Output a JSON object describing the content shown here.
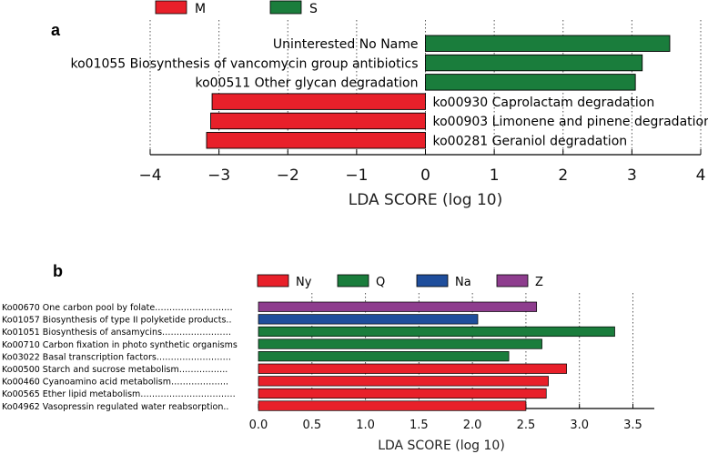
{
  "chart_data": [
    {
      "panel": "a",
      "type": "bar",
      "orientation": "horizontal",
      "xlabel": "LDA SCORE (log 10)",
      "xlim": [
        -4,
        4
      ],
      "xticks": [
        "−4",
        "−3",
        "−2",
        "−1",
        "0",
        "1",
        "2",
        "3",
        "4"
      ],
      "grid": "vertical dotted",
      "legend": [
        {
          "name": "M",
          "color": "#e8202a"
        },
        {
          "name": "S",
          "color": "#1a7d3c"
        }
      ],
      "bars": [
        {
          "label": "Uninterested No Name",
          "value": 3.55,
          "group": "S"
        },
        {
          "label": "ko01055 Biosynthesis of vancomycin group antibiotics",
          "value": 3.15,
          "group": "S"
        },
        {
          "label": "ko00511 Other glycan degradation",
          "value": 3.05,
          "group": "S"
        },
        {
          "label": "ko00930 Caprolactam degradation",
          "value": -3.1,
          "group": "M"
        },
        {
          "label": "ko00903 Limonene and pinene degradation",
          "value": -3.12,
          "group": "M"
        },
        {
          "label": "ko00281 Geraniol degradation",
          "value": -3.18,
          "group": "M"
        }
      ]
    },
    {
      "panel": "b",
      "type": "bar",
      "orientation": "horizontal",
      "xlabel": "LDA SCORE (log 10)",
      "xlim": [
        0,
        3.7
      ],
      "xticks": [
        "0.0",
        "0.5",
        "1.0",
        "1.5",
        "2.0",
        "2.5",
        "3.0",
        "3.5"
      ],
      "grid": "vertical dotted",
      "legend": [
        {
          "name": "Ny",
          "color": "#e8202a"
        },
        {
          "name": "Q",
          "color": "#1a7d3c"
        },
        {
          "name": "Na",
          "color": "#1f4e9c"
        },
        {
          "name": "Z",
          "color": "#8e3d8e"
        }
      ],
      "bars": [
        {
          "label": "Ko00670  One carbon pool by folate………………………",
          "value": 2.6,
          "group": "Z"
        },
        {
          "label": "Ko01057  Biosynthesis of type II polyketide products..",
          "value": 2.05,
          "group": "Na"
        },
        {
          "label": "Ko01051  Biosynthesis of ansamycins……………………",
          "value": 3.33,
          "group": "Q"
        },
        {
          "label": "Ko00710  Carbon fixation in photo synthetic organisms",
          "value": 2.65,
          "group": "Q"
        },
        {
          "label": "Ko03022  Basal transcription factors……………………..",
          "value": 2.34,
          "group": "Q"
        },
        {
          "label": "Ko00500  Starch and sucrose metabolism……………..",
          "value": 2.88,
          "group": "Ny"
        },
        {
          "label": "Ko00460  Cyanoamino acid metabolism………………..",
          "value": 2.71,
          "group": "Ny"
        },
        {
          "label": "Ko00565  Ether lipid metabolism……………………………",
          "value": 2.69,
          "group": "Ny"
        },
        {
          "label": "Ko04962  Vasopressin regulated water reabsorption..",
          "value": 2.5,
          "group": "Ny"
        }
      ]
    }
  ]
}
